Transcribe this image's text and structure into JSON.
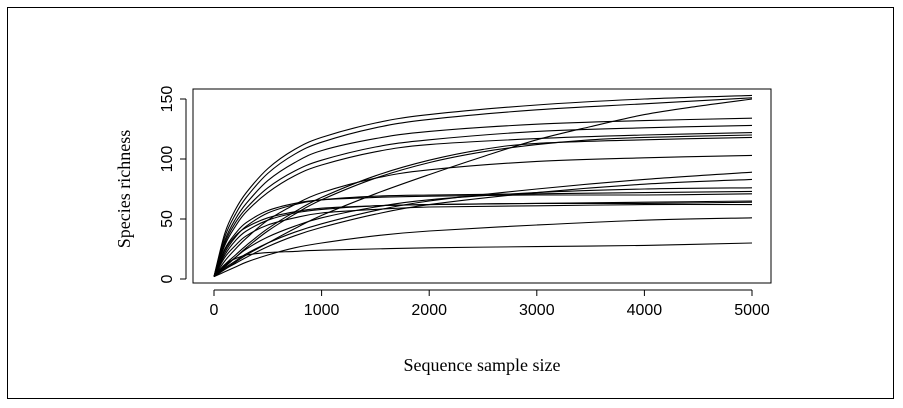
{
  "chart_data": {
    "type": "line",
    "title": "",
    "xlabel": "Sequence sample size",
    "ylabel": "Species richness",
    "xlim": [
      0,
      5000
    ],
    "ylim": [
      0,
      155
    ],
    "xticks": [
      0,
      1000,
      2000,
      3000,
      4000,
      5000
    ],
    "yticks": [
      0,
      50,
      100,
      150
    ],
    "grid": false,
    "legend": "none",
    "line_color": "#000000",
    "series": [
      {
        "values": [
          [
            0,
            2
          ],
          [
            100,
            38
          ],
          [
            200,
            58
          ],
          [
            300,
            72
          ],
          [
            500,
            92
          ],
          [
            750,
            108
          ],
          [
            1000,
            118
          ],
          [
            1500,
            130
          ],
          [
            2000,
            137
          ],
          [
            3000,
            145
          ],
          [
            4000,
            150
          ],
          [
            5000,
            153
          ]
        ]
      },
      {
        "values": [
          [
            0,
            2
          ],
          [
            100,
            35
          ],
          [
            200,
            54
          ],
          [
            300,
            68
          ],
          [
            500,
            88
          ],
          [
            750,
            104
          ],
          [
            1000,
            114
          ],
          [
            1500,
            126
          ],
          [
            2000,
            133
          ],
          [
            3000,
            141
          ],
          [
            4000,
            146
          ],
          [
            5000,
            151
          ]
        ]
      },
      {
        "values": [
          [
            0,
            2
          ],
          [
            100,
            8
          ],
          [
            200,
            14
          ],
          [
            300,
            20
          ],
          [
            500,
            30
          ],
          [
            750,
            42
          ],
          [
            1000,
            53
          ],
          [
            1500,
            71
          ],
          [
            2000,
            87
          ],
          [
            2500,
            102
          ],
          [
            3000,
            116
          ],
          [
            3500,
            127
          ],
          [
            4000,
            137
          ],
          [
            4500,
            144
          ],
          [
            5000,
            150
          ]
        ]
      },
      {
        "values": [
          [
            0,
            2
          ],
          [
            100,
            32
          ],
          [
            200,
            50
          ],
          [
            300,
            63
          ],
          [
            500,
            82
          ],
          [
            750,
            97
          ],
          [
            1000,
            107
          ],
          [
            1500,
            117
          ],
          [
            2000,
            123
          ],
          [
            3000,
            129
          ],
          [
            4000,
            132
          ],
          [
            5000,
            134
          ]
        ]
      },
      {
        "values": [
          [
            0,
            2
          ],
          [
            100,
            30
          ],
          [
            200,
            47
          ],
          [
            300,
            59
          ],
          [
            500,
            76
          ],
          [
            750,
            90
          ],
          [
            1000,
            99
          ],
          [
            1500,
            110
          ],
          [
            2000,
            116
          ],
          [
            3000,
            123
          ],
          [
            4000,
            126
          ],
          [
            5000,
            128
          ]
        ]
      },
      {
        "values": [
          [
            0,
            2
          ],
          [
            100,
            28
          ],
          [
            200,
            44
          ],
          [
            300,
            56
          ],
          [
            500,
            72
          ],
          [
            750,
            86
          ],
          [
            1000,
            95
          ],
          [
            1500,
            106
          ],
          [
            2000,
            112
          ],
          [
            3000,
            117
          ],
          [
            4000,
            120
          ],
          [
            5000,
            122
          ]
        ]
      },
      {
        "values": [
          [
            0,
            2
          ],
          [
            100,
            10
          ],
          [
            200,
            18
          ],
          [
            300,
            26
          ],
          [
            500,
            40
          ],
          [
            750,
            54
          ],
          [
            1000,
            66
          ],
          [
            1500,
            84
          ],
          [
            2000,
            97
          ],
          [
            2500,
            106
          ],
          [
            3000,
            112
          ],
          [
            3500,
            116
          ],
          [
            4000,
            118
          ],
          [
            5000,
            120
          ]
        ]
      },
      {
        "values": [
          [
            0,
            2
          ],
          [
            100,
            12
          ],
          [
            200,
            20
          ],
          [
            300,
            28
          ],
          [
            500,
            42
          ],
          [
            750,
            56
          ],
          [
            1000,
            68
          ],
          [
            1500,
            86
          ],
          [
            2000,
            99
          ],
          [
            2500,
            108
          ],
          [
            3000,
            113
          ],
          [
            4000,
            116
          ],
          [
            5000,
            118
          ]
        ]
      },
      {
        "values": [
          [
            0,
            2
          ],
          [
            100,
            15
          ],
          [
            200,
            25
          ],
          [
            300,
            34
          ],
          [
            500,
            49
          ],
          [
            750,
            62
          ],
          [
            1000,
            72
          ],
          [
            1500,
            84
          ],
          [
            2000,
            91
          ],
          [
            3000,
            98
          ],
          [
            4000,
            101
          ],
          [
            5000,
            103
          ]
        ]
      },
      {
        "values": [
          [
            0,
            2
          ],
          [
            100,
            22
          ],
          [
            200,
            35
          ],
          [
            300,
            44
          ],
          [
            500,
            55
          ],
          [
            750,
            62
          ],
          [
            1000,
            66
          ],
          [
            1500,
            69
          ],
          [
            2000,
            70
          ],
          [
            3000,
            71
          ],
          [
            4000,
            72
          ],
          [
            5000,
            73
          ]
        ]
      },
      {
        "values": [
          [
            0,
            2
          ],
          [
            100,
            25
          ],
          [
            200,
            38
          ],
          [
            300,
            47
          ],
          [
            500,
            57
          ],
          [
            750,
            63
          ],
          [
            1000,
            66
          ],
          [
            1500,
            68
          ],
          [
            2000,
            69
          ],
          [
            3000,
            70
          ],
          [
            4000,
            70
          ],
          [
            5000,
            71
          ]
        ]
      },
      {
        "values": [
          [
            0,
            2
          ],
          [
            100,
            9
          ],
          [
            200,
            15
          ],
          [
            300,
            21
          ],
          [
            500,
            30
          ],
          [
            750,
            39
          ],
          [
            1000,
            46
          ],
          [
            1500,
            57
          ],
          [
            2000,
            65
          ],
          [
            3000,
            75
          ],
          [
            4000,
            83
          ],
          [
            5000,
            89
          ]
        ]
      },
      {
        "values": [
          [
            0,
            2
          ],
          [
            100,
            8
          ],
          [
            200,
            13
          ],
          [
            300,
            18
          ],
          [
            500,
            27
          ],
          [
            750,
            36
          ],
          [
            1000,
            43
          ],
          [
            1500,
            54
          ],
          [
            2000,
            62
          ],
          [
            3000,
            72
          ],
          [
            4000,
            79
          ],
          [
            5000,
            83
          ]
        ]
      },
      {
        "values": [
          [
            0,
            2
          ],
          [
            100,
            11
          ],
          [
            200,
            18
          ],
          [
            300,
            25
          ],
          [
            500,
            35
          ],
          [
            750,
            44
          ],
          [
            1000,
            51
          ],
          [
            1500,
            60
          ],
          [
            2000,
            66
          ],
          [
            3000,
            72
          ],
          [
            4000,
            75
          ],
          [
            5000,
            76
          ]
        ]
      },
      {
        "values": [
          [
            0,
            2
          ],
          [
            100,
            20
          ],
          [
            200,
            32
          ],
          [
            300,
            40
          ],
          [
            500,
            49
          ],
          [
            750,
            55
          ],
          [
            1000,
            58
          ],
          [
            1500,
            61
          ],
          [
            2000,
            62
          ],
          [
            3000,
            63
          ],
          [
            4000,
            64
          ],
          [
            5000,
            65
          ]
        ]
      },
      {
        "values": [
          [
            0,
            2
          ],
          [
            100,
            24
          ],
          [
            200,
            36
          ],
          [
            300,
            43
          ],
          [
            500,
            51
          ],
          [
            750,
            56
          ],
          [
            1000,
            59
          ],
          [
            1500,
            61
          ],
          [
            2000,
            62
          ],
          [
            3000,
            63
          ],
          [
            4000,
            63
          ],
          [
            5000,
            64
          ]
        ]
      },
      {
        "values": [
          [
            0,
            2
          ],
          [
            100,
            18
          ],
          [
            200,
            28
          ],
          [
            300,
            36
          ],
          [
            500,
            45
          ],
          [
            750,
            51
          ],
          [
            1000,
            55
          ],
          [
            1500,
            58
          ],
          [
            2000,
            60
          ],
          [
            3000,
            61
          ],
          [
            4000,
            62
          ],
          [
            5000,
            62
          ]
        ]
      },
      {
        "values": [
          [
            0,
            2
          ],
          [
            100,
            6
          ],
          [
            200,
            10
          ],
          [
            300,
            14
          ],
          [
            500,
            20
          ],
          [
            750,
            26
          ],
          [
            1000,
            30
          ],
          [
            1500,
            36
          ],
          [
            2000,
            40
          ],
          [
            3000,
            45
          ],
          [
            4000,
            49
          ],
          [
            5000,
            51
          ]
        ]
      },
      {
        "values": [
          [
            0,
            2
          ],
          [
            100,
            12
          ],
          [
            200,
            17
          ],
          [
            300,
            20
          ],
          [
            500,
            22
          ],
          [
            750,
            23
          ],
          [
            1000,
            24
          ],
          [
            2000,
            26
          ],
          [
            3000,
            27
          ],
          [
            4000,
            28
          ],
          [
            5000,
            30
          ]
        ]
      }
    ]
  }
}
